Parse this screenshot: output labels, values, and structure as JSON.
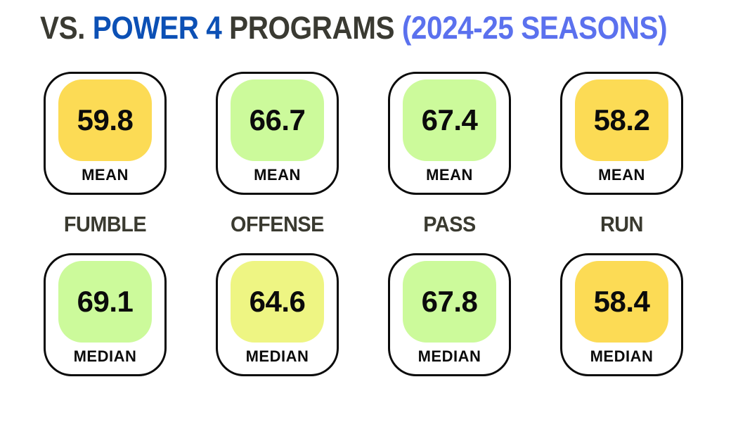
{
  "title": {
    "part_vs": "VS. ",
    "part_power4": "POWER 4 ",
    "part_programs": "PROGRAMS ",
    "part_seasons": "(2024-25 SEASONS)",
    "colors": {
      "dark": "#3a3a32",
      "blue": "#0c50b5",
      "light_blue": "#5b71ee"
    }
  },
  "colors": {
    "background": "#ffffff",
    "card_border": "#0b0b0b",
    "value_text": "#0b0b0b",
    "category_text": "#3a3a30",
    "yellow": "#fcdb55",
    "green": "#ccfa9b",
    "yellow_green": "#eef583"
  },
  "labels": {
    "mean": "MEAN",
    "median": "MEDIAN"
  },
  "columns": [
    {
      "category": "FUMBLE",
      "mean": {
        "value": "59.8",
        "fill": "#fcdb55"
      },
      "median": {
        "value": "69.1",
        "fill": "#ccfa9b"
      }
    },
    {
      "category": "OFFENSE",
      "mean": {
        "value": "66.7",
        "fill": "#ccfa9b"
      },
      "median": {
        "value": "64.6",
        "fill": "#eef583"
      }
    },
    {
      "category": "PASS",
      "mean": {
        "value": "67.4",
        "fill": "#ccfa9b"
      },
      "median": {
        "value": "67.8",
        "fill": "#ccfa9b"
      }
    },
    {
      "category": "RUN",
      "mean": {
        "value": "58.2",
        "fill": "#fcdb55"
      },
      "median": {
        "value": "58.4",
        "fill": "#fcdb55"
      }
    }
  ],
  "chart_data": {
    "type": "table",
    "title": "VS. POWER 4 PROGRAMS (2024-25 SEASONS)",
    "categories": [
      "FUMBLE",
      "OFFENSE",
      "PASS",
      "RUN"
    ],
    "series": [
      {
        "name": "MEAN",
        "values": [
          59.8,
          66.7,
          67.4,
          58.2
        ]
      },
      {
        "name": "MEDIAN",
        "values": [
          69.1,
          64.6,
          67.8,
          58.4
        ]
      }
    ],
    "color_coding": {
      "59.8": "yellow",
      "66.7": "green",
      "67.4": "green",
      "58.2": "yellow",
      "69.1": "green",
      "64.6": "yellow_green",
      "67.8": "green",
      "58.4": "yellow"
    }
  }
}
